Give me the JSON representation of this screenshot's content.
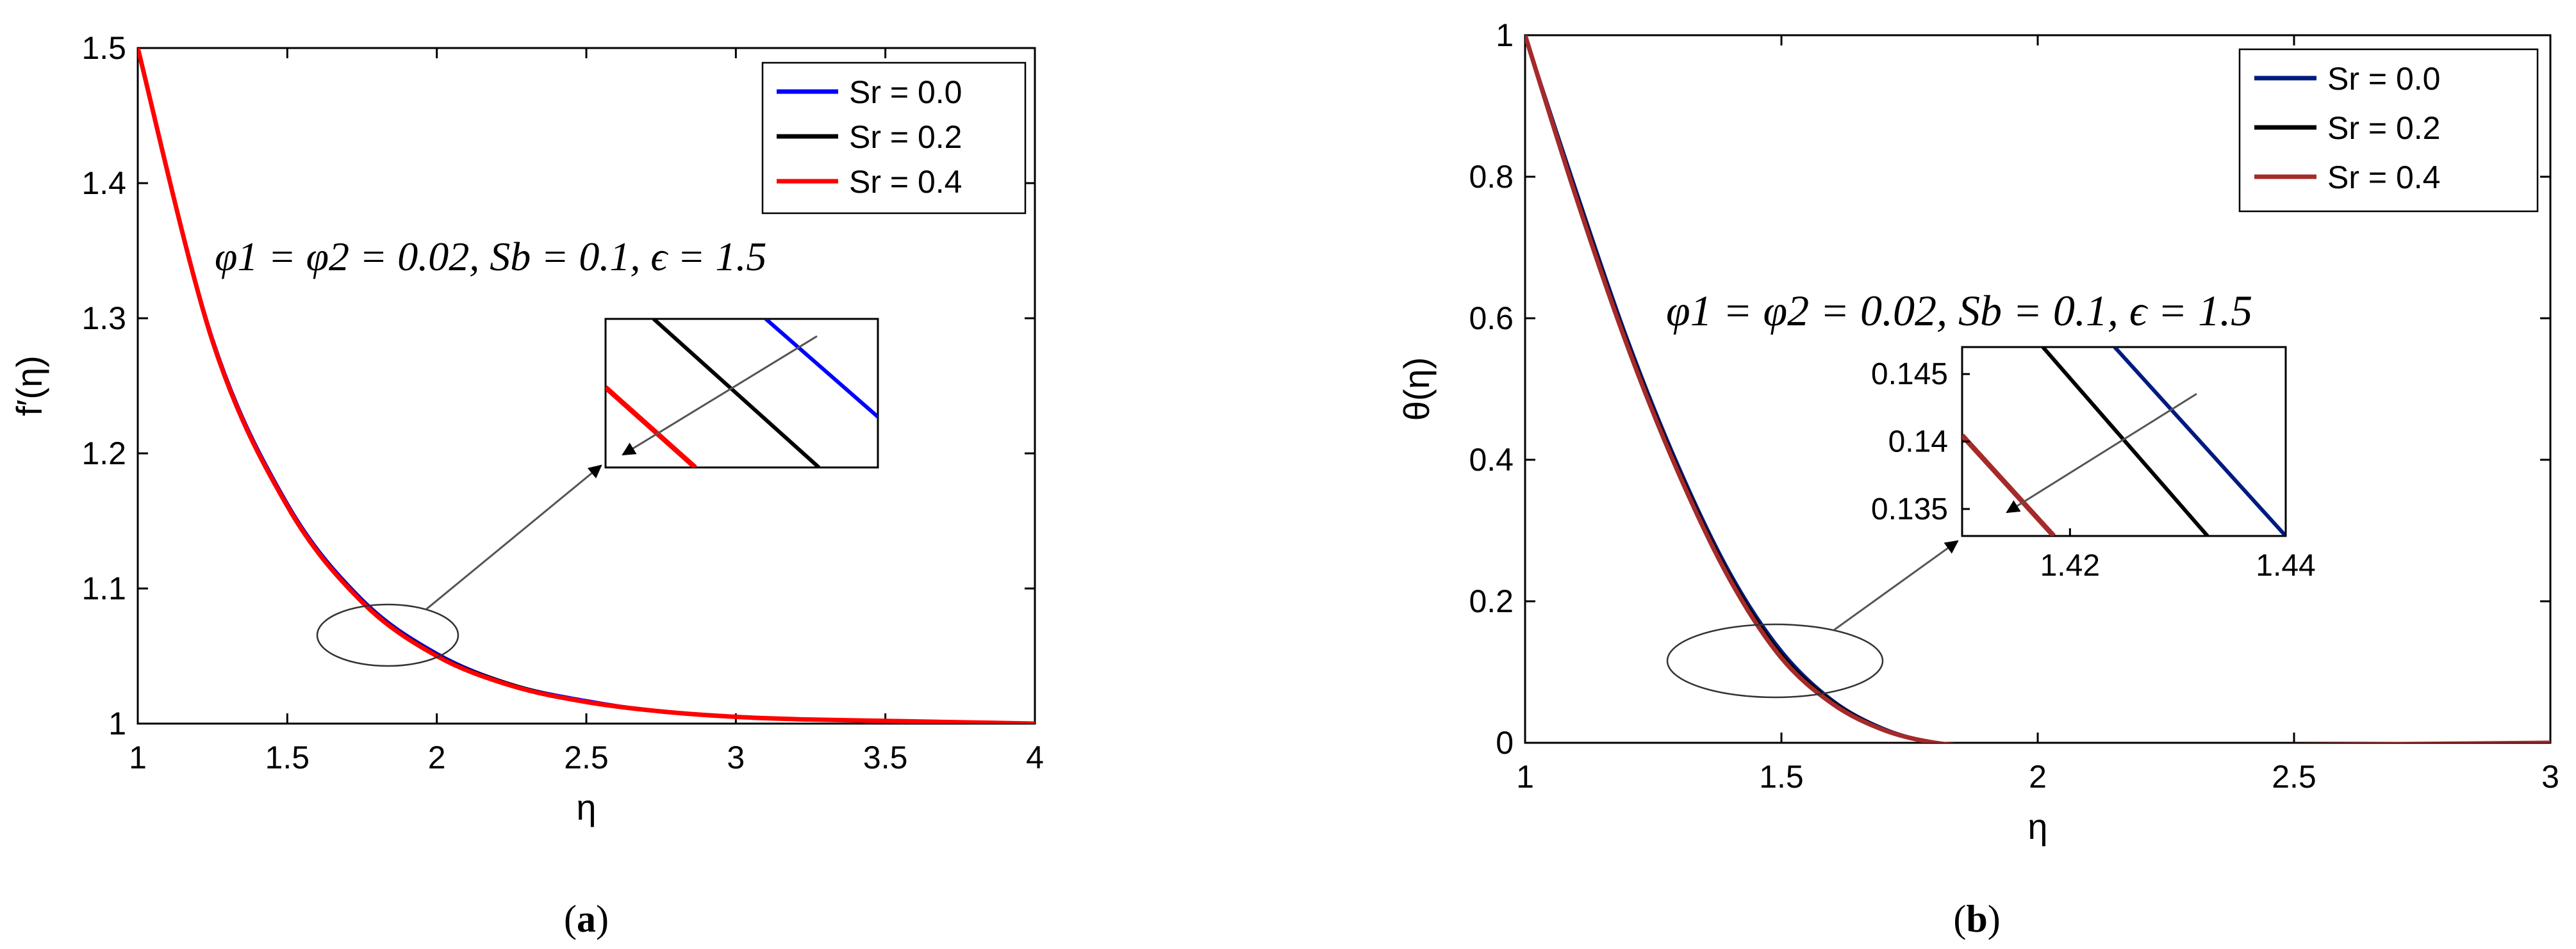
{
  "colors": {
    "blue": "#0000ff",
    "navy": "#001a80",
    "black": "#000000",
    "red": "#ff0000",
    "brown": "#a52a2a",
    "arrow": "#555555"
  },
  "chart_data": [
    {
      "type": "line",
      "caption_open": "(",
      "caption_letter": "a",
      "caption_close": ")",
      "xlabel": "η",
      "ylabel": "f′(η)",
      "xlim": [
        1,
        4
      ],
      "ylim": [
        1,
        1.5
      ],
      "xticks": [
        "1",
        "1.5",
        "2",
        "2.5",
        "3",
        "3.5",
        "4"
      ],
      "yticks": [
        "1",
        "1.1",
        "1.2",
        "1.3",
        "1.4",
        "1.5"
      ],
      "legend_position": "top-right",
      "annotation": "φ1 = φ2 = 0.02, Sb = 0.1, ϵ = 1.5",
      "x": [
        1.0,
        1.25,
        1.5,
        1.75,
        2.0,
        2.25,
        2.5,
        2.75,
        3.0,
        3.25,
        3.5,
        3.75,
        4.0
      ],
      "series": [
        {
          "name": "Sr = 0.0",
          "color": "blue",
          "values": [
            1.5,
            1.285,
            1.163,
            1.092,
            1.052,
            1.029,
            1.017,
            1.009,
            1.005,
            1.003,
            1.002,
            1.001,
            1.0
          ]
        },
        {
          "name": "Sr = 0.2",
          "color": "black",
          "values": [
            1.5,
            1.284,
            1.162,
            1.091,
            1.051,
            1.029,
            1.016,
            1.009,
            1.005,
            1.003,
            1.002,
            1.001,
            1.0
          ]
        },
        {
          "name": "Sr = 0.4",
          "color": "red",
          "values": [
            1.5,
            1.283,
            1.161,
            1.09,
            1.05,
            1.028,
            1.016,
            1.009,
            1.005,
            1.003,
            1.002,
            1.001,
            1.0
          ]
        }
      ],
      "inset": {
        "xticks": [],
        "yticks": []
      }
    },
    {
      "type": "line",
      "caption_open": "(",
      "caption_letter": "b",
      "caption_close": ")",
      "xlabel": "η",
      "ylabel": "θ(η)",
      "xlim": [
        1,
        3
      ],
      "ylim": [
        0,
        1
      ],
      "xticks": [
        "1",
        "1.5",
        "2",
        "2.5",
        "3"
      ],
      "yticks": [
        "0",
        "0.2",
        "0.4",
        "0.6",
        "0.8",
        "1"
      ],
      "legend_position": "top-right",
      "annotation": "φ1 = φ2 = 0.02, Sb = 0.1, ϵ = 1.5",
      "x": [
        1.0,
        1.1,
        1.2,
        1.3,
        1.4,
        1.5,
        1.6,
        1.7,
        1.8,
        1.9,
        2.0,
        2.5,
        3.0
      ],
      "series": [
        {
          "name": "Sr = 0.0",
          "color": "navy",
          "values": [
            1.0,
            0.78,
            0.57,
            0.39,
            0.24,
            0.13,
            0.06,
            0.02,
            0.0,
            -0.005,
            -0.005,
            -0.003,
            0.0
          ]
        },
        {
          "name": "Sr = 0.2",
          "color": "black",
          "values": [
            1.0,
            0.775,
            0.565,
            0.385,
            0.235,
            0.125,
            0.058,
            0.019,
            0.0,
            -0.005,
            -0.005,
            -0.003,
            0.0
          ]
        },
        {
          "name": "Sr = 0.4",
          "color": "brown",
          "values": [
            1.0,
            0.77,
            0.56,
            0.38,
            0.23,
            0.12,
            0.055,
            0.018,
            0.0,
            -0.005,
            -0.005,
            -0.003,
            0.0
          ]
        }
      ],
      "inset": {
        "xlim": [
          1.41,
          1.44
        ],
        "ylim": [
          0.133,
          0.147
        ],
        "xticks": [
          "1.42",
          "1.44"
        ],
        "yticks": [
          "0.145",
          "0.14",
          "0.135"
        ]
      }
    }
  ]
}
